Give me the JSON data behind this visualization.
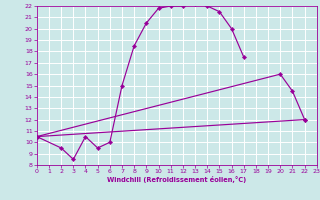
{
  "title": "",
  "xlabel": "Windchill (Refroidissement éolien,°C)",
  "bg_color": "#cce8e8",
  "line_color": "#990099",
  "grid_color": "#ffffff",
  "xmin": 0,
  "xmax": 23,
  "ymin": 8,
  "ymax": 22,
  "series": [
    {
      "x": [
        0,
        2,
        3,
        4,
        5,
        6,
        7,
        8,
        9,
        10,
        11,
        12,
        13,
        14,
        15,
        16,
        17
      ],
      "y": [
        10.5,
        9.5,
        8.5,
        10.5,
        9.5,
        10.0,
        15.0,
        18.5,
        20.5,
        21.8,
        22.0,
        22.0,
        22.2,
        22.0,
        21.5,
        20.0,
        17.5
      ]
    },
    {
      "x": [
        0,
        20,
        21,
        22
      ],
      "y": [
        10.5,
        16.0,
        14.5,
        12.0
      ]
    },
    {
      "x": [
        0,
        22
      ],
      "y": [
        10.5,
        12.0
      ]
    }
  ],
  "xticks": [
    0,
    1,
    2,
    3,
    4,
    5,
    6,
    7,
    8,
    9,
    10,
    11,
    12,
    13,
    14,
    15,
    16,
    17,
    18,
    19,
    20,
    21,
    22,
    23
  ],
  "yticks": [
    8,
    9,
    10,
    11,
    12,
    13,
    14,
    15,
    16,
    17,
    18,
    19,
    20,
    21,
    22
  ],
  "tick_fontsize": 4.5,
  "xlabel_fontsize": 4.8,
  "marker_size": 2.2,
  "linewidth": 0.85
}
